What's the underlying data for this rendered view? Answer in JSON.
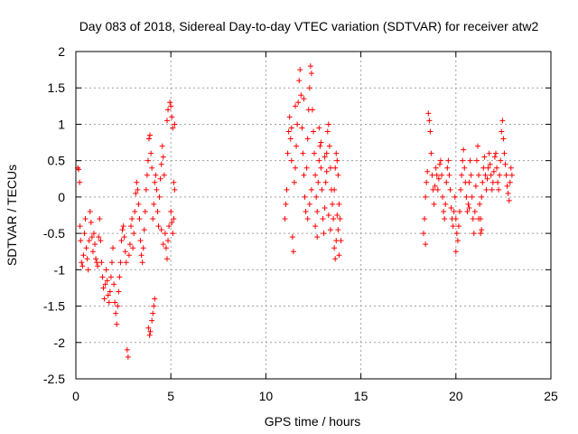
{
  "chart_data": {
    "type": "scatter",
    "title": "Day 083 of 2018, Sidereal Day-to-day VTEC variation (SDTVAR) for receiver atw2",
    "xlabel": "GPS time / hours",
    "ylabel": "SDTVAR / TECUs",
    "xlim": [
      0,
      25
    ],
    "ylim": [
      -2.5,
      2
    ],
    "xticks": [
      0,
      5,
      10,
      15,
      20,
      25
    ],
    "yticks": [
      -2.5,
      -2,
      -1.5,
      -1,
      -0.5,
      0,
      0.5,
      1,
      1.5,
      2
    ],
    "xtick_labels": [
      "0",
      "5",
      "10",
      "15",
      "20",
      "25"
    ],
    "ytick_labels": [
      "-2.5",
      "-2",
      "-1.5",
      "-1",
      "-0.5",
      "0",
      "0.5",
      "1",
      "1.5",
      "2"
    ],
    "grid": true,
    "marker": "+",
    "color": "#ff0000",
    "series": [
      {
        "name": "SDTVAR",
        "points": [
          [
            0.1,
            0.4
          ],
          [
            0.15,
            0.38
          ],
          [
            0.2,
            0.2
          ],
          [
            0.22,
            -0.4
          ],
          [
            0.25,
            -0.6
          ],
          [
            0.3,
            -0.9
          ],
          [
            0.35,
            -0.95
          ],
          [
            0.4,
            -0.8
          ],
          [
            0.45,
            -0.5
          ],
          [
            0.5,
            -0.3
          ],
          [
            0.55,
            -0.7
          ],
          [
            0.6,
            -0.85
          ],
          [
            0.65,
            -1.0
          ],
          [
            0.7,
            -0.6
          ],
          [
            0.75,
            -0.2
          ],
          [
            0.8,
            -0.35
          ],
          [
            0.85,
            -0.55
          ],
          [
            0.9,
            -0.75
          ],
          [
            0.95,
            -0.5
          ],
          [
            1.0,
            -0.65
          ],
          [
            1.05,
            -0.85
          ],
          [
            1.1,
            -0.9
          ],
          [
            1.15,
            -0.95
          ],
          [
            1.2,
            -0.55
          ],
          [
            1.25,
            -0.3
          ],
          [
            1.3,
            -0.6
          ],
          [
            1.35,
            -0.9
          ],
          [
            1.4,
            -1.1
          ],
          [
            1.45,
            -1.25
          ],
          [
            1.5,
            -1.4
          ],
          [
            1.55,
            -1.2
          ],
          [
            1.6,
            -1.0
          ],
          [
            1.65,
            -1.15
          ],
          [
            1.7,
            -1.35
          ],
          [
            1.75,
            -1.45
          ],
          [
            1.8,
            -1.3
          ],
          [
            1.85,
            -1.1
          ],
          [
            1.9,
            -0.9
          ],
          [
            1.95,
            -0.7
          ],
          [
            2.0,
            -1.2
          ],
          [
            2.05,
            -1.45
          ],
          [
            2.1,
            -1.6
          ],
          [
            2.15,
            -1.75
          ],
          [
            2.2,
            -1.5
          ],
          [
            2.25,
            -1.3
          ],
          [
            2.3,
            -1.1
          ],
          [
            2.35,
            -0.9
          ],
          [
            2.4,
            -0.6
          ],
          [
            2.45,
            -0.45
          ],
          [
            2.5,
            -0.4
          ],
          [
            2.55,
            -0.55
          ],
          [
            2.6,
            -0.75
          ],
          [
            2.65,
            -0.9
          ],
          [
            2.7,
            -2.1
          ],
          [
            2.75,
            -2.2
          ],
          [
            2.8,
            -0.8
          ],
          [
            2.85,
            -0.65
          ],
          [
            2.9,
            -0.4
          ],
          [
            2.95,
            -0.3
          ],
          [
            3.0,
            -0.7
          ],
          [
            3.05,
            -0.5
          ],
          [
            3.1,
            -0.2
          ],
          [
            3.15,
            0.05
          ],
          [
            3.2,
            0.2
          ],
          [
            3.25,
            0.1
          ],
          [
            3.3,
            -0.1
          ],
          [
            3.35,
            -0.3
          ],
          [
            3.4,
            -0.6
          ],
          [
            3.45,
            -0.8
          ],
          [
            3.5,
            -0.9
          ],
          [
            3.55,
            -0.7
          ],
          [
            3.6,
            -0.45
          ],
          [
            3.65,
            -0.2
          ],
          [
            3.7,
            0.1
          ],
          [
            3.75,
            0.3
          ],
          [
            3.8,
            0.5
          ],
          [
            3.85,
            0.8
          ],
          [
            3.9,
            0.85
          ],
          [
            3.95,
            0.6
          ],
          [
            4.0,
            0.4
          ],
          [
            3.82,
            -1.8
          ],
          [
            3.88,
            -1.9
          ],
          [
            3.92,
            -1.85
          ],
          [
            4.0,
            -1.7
          ],
          [
            4.05,
            -1.6
          ],
          [
            4.1,
            -1.5
          ],
          [
            4.15,
            -1.4
          ],
          [
            4.05,
            -0.3
          ],
          [
            4.1,
            -0.1
          ],
          [
            4.15,
            0.2
          ],
          [
            4.2,
            0.3
          ],
          [
            4.25,
            0.1
          ],
          [
            4.3,
            -0.2
          ],
          [
            4.35,
            -0.4
          ],
          [
            4.4,
            0.0
          ],
          [
            4.45,
            0.25
          ],
          [
            4.5,
            0.45
          ],
          [
            4.55,
            0.7
          ],
          [
            4.6,
            0.55
          ],
          [
            4.65,
            0.3
          ],
          [
            4.7,
            -0.5
          ],
          [
            4.75,
            -0.7
          ],
          [
            4.8,
            -0.85
          ],
          [
            4.85,
            -0.6
          ],
          [
            4.9,
            -0.4
          ],
          [
            4.95,
            1.3
          ],
          [
            5.0,
            1.25
          ],
          [
            5.05,
            1.1
          ],
          [
            5.1,
            0.95
          ],
          [
            5.15,
            0.2
          ],
          [
            5.2,
            0.1
          ],
          [
            5.0,
            -0.2
          ],
          [
            5.05,
            -0.35
          ],
          [
            5.1,
            -0.5
          ],
          [
            5.15,
            -0.3
          ],
          [
            4.5,
            -0.45
          ],
          [
            4.6,
            -0.65
          ],
          [
            4.8,
            1.05
          ],
          [
            4.85,
            1.2
          ],
          [
            5.2,
            1.0
          ],
          [
            11.0,
            -0.3
          ],
          [
            11.05,
            -0.1
          ],
          [
            11.1,
            0.1
          ],
          [
            11.15,
            0.6
          ],
          [
            11.2,
            0.9
          ],
          [
            11.25,
            1.1
          ],
          [
            11.3,
            0.8
          ],
          [
            11.35,
            0.5
          ],
          [
            11.4,
            -0.55
          ],
          [
            11.45,
            -0.75
          ],
          [
            11.5,
            0.2
          ],
          [
            11.55,
            0.4
          ],
          [
            11.6,
            0.7
          ],
          [
            11.65,
            1.0
          ],
          [
            11.7,
            1.3
          ],
          [
            11.75,
            1.6
          ],
          [
            11.8,
            1.75
          ],
          [
            11.85,
            1.4
          ],
          [
            11.9,
            0.95
          ],
          [
            11.95,
            0.6
          ],
          [
            12.0,
            0.3
          ],
          [
            12.05,
            0.0
          ],
          [
            12.1,
            -0.2
          ],
          [
            12.15,
            0.4
          ],
          [
            12.2,
            0.8
          ],
          [
            12.25,
            1.2
          ],
          [
            12.3,
            1.5
          ],
          [
            12.35,
            1.8
          ],
          [
            12.4,
            1.7
          ],
          [
            12.45,
            1.2
          ],
          [
            12.5,
            0.9
          ],
          [
            12.55,
            0.6
          ],
          [
            12.6,
            0.3
          ],
          [
            12.65,
            0.0
          ],
          [
            12.7,
            -0.2
          ],
          [
            12.75,
            0.2
          ],
          [
            12.8,
            0.5
          ],
          [
            12.85,
            0.7
          ],
          [
            12.9,
            0.4
          ],
          [
            12.95,
            0.1
          ],
          [
            13.0,
            -0.3
          ],
          [
            13.05,
            -0.5
          ],
          [
            13.1,
            -0.15
          ],
          [
            13.15,
            0.2
          ],
          [
            13.2,
            0.6
          ],
          [
            13.25,
            0.9
          ],
          [
            13.3,
            1.0
          ],
          [
            13.35,
            0.7
          ],
          [
            13.4,
            0.4
          ],
          [
            13.45,
            0.1
          ],
          [
            13.5,
            -0.1
          ],
          [
            13.55,
            -0.3
          ],
          [
            13.6,
            0.1
          ],
          [
            13.65,
            0.4
          ],
          [
            13.7,
            0.6
          ],
          [
            13.75,
            0.5
          ],
          [
            13.8,
            0.3
          ],
          [
            13.85,
            -0.1
          ],
          [
            13.9,
            -0.3
          ],
          [
            13.95,
            -0.6
          ],
          [
            13.6,
            -0.7
          ],
          [
            13.65,
            -0.85
          ],
          [
            13.7,
            -0.6
          ],
          [
            13.75,
            -0.25
          ],
          [
            13.8,
            -0.45
          ],
          [
            13.85,
            -0.8
          ],
          [
            12.6,
            -0.4
          ],
          [
            12.7,
            -0.55
          ],
          [
            12.2,
            -0.3
          ],
          [
            12.3,
            -0.1
          ],
          [
            12.4,
            0.1
          ],
          [
            12.8,
            0.95
          ],
          [
            12.9,
            0.75
          ],
          [
            13.1,
            0.55
          ],
          [
            13.2,
            0.35
          ],
          [
            13.3,
            -0.25
          ],
          [
            13.4,
            -0.45
          ],
          [
            11.35,
            0.95
          ],
          [
            11.55,
            1.25
          ],
          [
            12.0,
            1.35
          ],
          [
            18.3,
            -0.5
          ],
          [
            18.35,
            -0.3
          ],
          [
            18.4,
            0.0
          ],
          [
            18.45,
            0.2
          ],
          [
            18.5,
            0.35
          ],
          [
            18.55,
            1.15
          ],
          [
            18.6,
            1.05
          ],
          [
            18.65,
            0.9
          ],
          [
            18.7,
            0.6
          ],
          [
            18.75,
            0.3
          ],
          [
            18.8,
            0.1
          ],
          [
            18.85,
            -0.1
          ],
          [
            18.9,
            0.15
          ],
          [
            18.95,
            0.4
          ],
          [
            19.0,
            0.3
          ],
          [
            19.05,
            0.1
          ],
          [
            19.1,
            0.25
          ],
          [
            19.15,
            0.45
          ],
          [
            19.2,
            0.5
          ],
          [
            19.25,
            0.3
          ],
          [
            19.3,
            0.0
          ],
          [
            19.35,
            -0.2
          ],
          [
            19.4,
            -0.3
          ],
          [
            19.45,
            -0.1
          ],
          [
            19.5,
            0.2
          ],
          [
            19.55,
            0.4
          ],
          [
            19.6,
            0.5
          ],
          [
            19.65,
            0.3
          ],
          [
            19.7,
            0.1
          ],
          [
            19.75,
            -0.15
          ],
          [
            19.8,
            -0.3
          ],
          [
            19.85,
            -0.4
          ],
          [
            19.9,
            -0.2
          ],
          [
            19.95,
            0.0
          ],
          [
            20.0,
            -0.3
          ],
          [
            20.05,
            -0.5
          ],
          [
            20.1,
            -0.6
          ],
          [
            20.15,
            -0.4
          ],
          [
            20.2,
            -0.2
          ],
          [
            20.25,
            0.1
          ],
          [
            20.3,
            0.3
          ],
          [
            20.35,
            0.5
          ],
          [
            20.4,
            0.65
          ],
          [
            20.45,
            0.4
          ],
          [
            20.5,
            0.2
          ],
          [
            20.55,
            0.0
          ],
          [
            20.6,
            -0.2
          ],
          [
            20.65,
            -0.1
          ],
          [
            20.7,
            0.2
          ],
          [
            20.75,
            0.5
          ],
          [
            20.8,
            0.3
          ],
          [
            20.85,
            0.0
          ],
          [
            20.9,
            -0.3
          ],
          [
            20.95,
            -0.5
          ],
          [
            21.0,
            -0.2
          ],
          [
            21.05,
            0.15
          ],
          [
            21.1,
            0.5
          ],
          [
            21.15,
            0.7
          ],
          [
            21.2,
            0.3
          ],
          [
            21.25,
            -0.1
          ],
          [
            21.3,
            -0.3
          ],
          [
            21.35,
            0.0
          ],
          [
            21.4,
            0.2
          ],
          [
            21.45,
            0.4
          ],
          [
            21.5,
            0.55
          ],
          [
            21.55,
            0.3
          ],
          [
            21.6,
            0.1
          ],
          [
            21.65,
            0.25
          ],
          [
            21.7,
            0.4
          ],
          [
            21.75,
            0.6
          ],
          [
            21.8,
            0.45
          ],
          [
            21.85,
            0.3
          ],
          [
            21.9,
            0.1
          ],
          [
            21.95,
            0.2
          ],
          [
            22.0,
            0.35
          ],
          [
            22.05,
            0.55
          ],
          [
            22.1,
            0.6
          ],
          [
            22.15,
            0.4
          ],
          [
            22.2,
            0.2
          ],
          [
            22.25,
            0.1
          ],
          [
            22.3,
            0.3
          ],
          [
            22.35,
            0.5
          ],
          [
            22.4,
            0.9
          ],
          [
            22.45,
            1.05
          ],
          [
            22.5,
            0.8
          ],
          [
            22.55,
            0.6
          ],
          [
            22.6,
            0.45
          ],
          [
            22.65,
            0.3
          ],
          [
            22.7,
            0.15
          ],
          [
            22.75,
            0.05
          ],
          [
            22.8,
            -0.05
          ],
          [
            22.85,
            0.2
          ],
          [
            22.9,
            0.4
          ],
          [
            22.95,
            0.3
          ],
          [
            21.3,
            -0.5
          ],
          [
            21.35,
            -0.45
          ],
          [
            21.2,
            -0.3
          ],
          [
            20.7,
            -0.15
          ],
          [
            20.0,
            -0.75
          ],
          [
            18.4,
            -0.65
          ]
        ]
      }
    ]
  }
}
